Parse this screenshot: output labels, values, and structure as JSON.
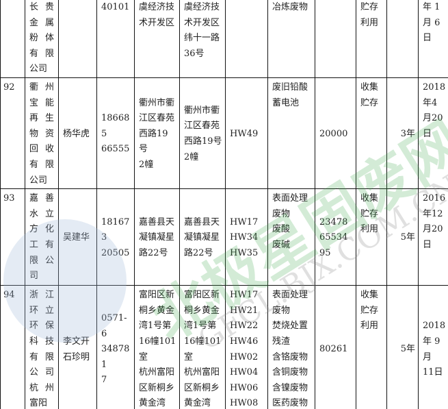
{
  "table": {
    "rows": [
      {
        "no": "",
        "company": "长贵金属粉体有限公司",
        "person": "",
        "phone": "40101",
        "addr1": "虞经济技\n术开发区",
        "addr2": "虞经济技\n术开发区\n纬十一路\n36号",
        "codes": "",
        "waste": "冶炼废物",
        "qty": "",
        "method": "贮存\n利用",
        "years": "",
        "date": "年 1\n月 6\n日"
      },
      {
        "no": "92",
        "company": "衢州宝能再生物资回收有限公司",
        "person": "杨华虎",
        "phone": "186685\n66555",
        "addr1": "衢州市衢\n江区春苑\n西路19号\n2幢",
        "addr2": "衢州市衢\n江区春苑\n西路19号\n2幢",
        "codes": "HW49",
        "waste": "废旧铅酸\n蓄电池",
        "qty": "20000",
        "method": "收集\n贮存",
        "years": "3年",
        "date": "2018\n年4\n月20\n日"
      },
      {
        "no": "93",
        "company": "嘉善水立方化工有限公司",
        "person": "吴建华",
        "phone": "181673\n20505",
        "addr1": "嘉善县天\n凝镇凝星\n路22号",
        "addr2": "嘉善县天\n凝镇凝星\n路22号",
        "codes": "HW17\nHW34\nHW35",
        "waste": "表面处理\n废物\n废酸\n废碱",
        "qty": "23478\n65534\n95",
        "method": "收集\n贮存\n利用",
        "years": "5年",
        "date": "2016\n年12\n月20\n日"
      },
      {
        "no": "94",
        "company": "浙江环立环保科技有限公司杭州富阳",
        "person": "李文开\n石珍明",
        "phone": "0571-6\n348781\n7",
        "addr1": "富阳区新\n桐乡黄金\n湾1号第\n16幢101\n室\n杭州富阳\n区新桐乡\n黄金湾",
        "addr2": "富阳区新\n桐乡黄金\n湾1号第\n16幢101\n室\n杭州富阳\n区新桐乡\n黄金湾",
        "codes": "HW17\nHW21\nHW22\nHW46\nHW02\nHW04\nHW06\nHW08",
        "waste": "表面处理\n废物\n焚烧处置\n残渣\n含铬废物\n含铜废物\n含镍废物\n医药废物",
        "qty": "80261",
        "method": "收集\n贮存\n利用",
        "years": "5年",
        "date": "2018\n年 9\n月\n11日"
      }
    ]
  },
  "watermark": {
    "text": "北极星固废网",
    "sub": "GFCL.BJX.COM.CN",
    "color": "#3aa84a"
  }
}
